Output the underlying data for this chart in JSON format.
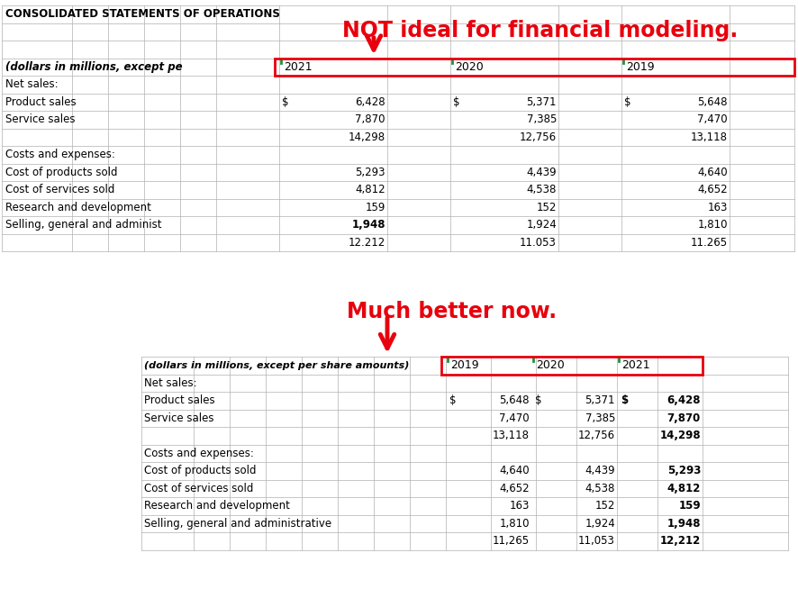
{
  "title_top": "CONSOLIDATED STATEMENTS OF OPERATIONS",
  "annotation_top": "NOT ideal for financial modeling.",
  "annotation_bottom": "Much better now.",
  "bg_color": "#ffffff",
  "grid_color": "#b0b0b0",
  "header_italic": "(dollars in millions, except pe",
  "header_italic2": "(dollars in millions, except per share amounts)",
  "years_top": [
    "2021",
    "2020",
    "2019"
  ],
  "years_bottom": [
    "2019",
    "2020",
    "2021"
  ],
  "rows_top": [
    {
      "label": "Net sales:",
      "vals": [
        "",
        "",
        ""
      ],
      "bold_label": false,
      "bold_vals": [
        false,
        false,
        false
      ]
    },
    {
      "label": "Product sales",
      "vals": [
        "$    6,428",
        "$    5,371",
        "$    5,648"
      ],
      "bold_label": false,
      "bold_vals": [
        false,
        false,
        false
      ]
    },
    {
      "label": "Service sales",
      "vals": [
        "7,870",
        "7,385",
        "7,470"
      ],
      "bold_label": false,
      "bold_vals": [
        false,
        false,
        false
      ]
    },
    {
      "label": "",
      "vals": [
        "14,298",
        "12,756",
        "13,118"
      ],
      "bold_label": false,
      "bold_vals": [
        false,
        false,
        false
      ]
    },
    {
      "label": "Costs and expenses:",
      "vals": [
        "",
        "",
        ""
      ],
      "bold_label": false,
      "bold_vals": [
        false,
        false,
        false
      ]
    },
    {
      "label": "Cost of products sold",
      "vals": [
        "5,293",
        "4,439",
        "4,640"
      ],
      "bold_label": false,
      "bold_vals": [
        false,
        false,
        false
      ]
    },
    {
      "label": "Cost of services sold",
      "vals": [
        "4,812",
        "4,538",
        "4,652"
      ],
      "bold_label": false,
      "bold_vals": [
        false,
        false,
        false
      ]
    },
    {
      "label": "Research and development",
      "vals": [
        "159",
        "152",
        "163"
      ],
      "bold_label": false,
      "bold_vals": [
        false,
        false,
        false
      ]
    },
    {
      "label": "Selling, general and administ",
      "vals": [
        "1,948",
        "1,924",
        "1,810"
      ],
      "bold_label": false,
      "bold_vals": [
        true,
        false,
        false
      ]
    },
    {
      "label": "",
      "vals": [
        "12.212",
        "11.053",
        "11.265"
      ],
      "bold_label": false,
      "bold_vals": [
        false,
        false,
        false
      ]
    }
  ],
  "rows_bottom": [
    {
      "label": "Net sales:",
      "vals": [
        "",
        "",
        ""
      ],
      "bold_label": false,
      "bold_vals": [
        false,
        false,
        false
      ]
    },
    {
      "label": "Product sales",
      "vals": [
        "$ 5,648",
        "$ 5,371",
        "$ 6,428"
      ],
      "bold_label": false,
      "bold_vals": [
        false,
        false,
        true
      ]
    },
    {
      "label": "Service sales",
      "vals": [
        "7,470",
        "7,385",
        "7,870"
      ],
      "bold_label": false,
      "bold_vals": [
        false,
        false,
        true
      ]
    },
    {
      "label": "",
      "vals": [
        "13,118",
        "12,756",
        "14,298"
      ],
      "bold_label": false,
      "bold_vals": [
        false,
        false,
        true
      ]
    },
    {
      "label": "Costs and expenses:",
      "vals": [
        "",
        "",
        ""
      ],
      "bold_label": false,
      "bold_vals": [
        false,
        false,
        false
      ]
    },
    {
      "label": "Cost of products sold",
      "vals": [
        "4,640",
        "4,439",
        "5,293"
      ],
      "bold_label": false,
      "bold_vals": [
        false,
        false,
        true
      ]
    },
    {
      "label": "Cost of services sold",
      "vals": [
        "4,652",
        "4,538",
        "4,812"
      ],
      "bold_label": false,
      "bold_vals": [
        false,
        false,
        true
      ]
    },
    {
      "label": "Research and development",
      "vals": [
        "163",
        "152",
        "159"
      ],
      "bold_label": false,
      "bold_vals": [
        false,
        false,
        true
      ]
    },
    {
      "label": "Selling, general and administrative",
      "vals": [
        "1,810",
        "1,924",
        "1,948"
      ],
      "bold_label": false,
      "bold_vals": [
        false,
        false,
        true
      ]
    },
    {
      "label": "",
      "vals": [
        "11,265",
        "11,053",
        "12,212"
      ],
      "bold_label": false,
      "bold_vals": [
        false,
        false,
        true
      ]
    }
  ],
  "red_color": "#e8000d",
  "green_tick_color": "#1a9641"
}
